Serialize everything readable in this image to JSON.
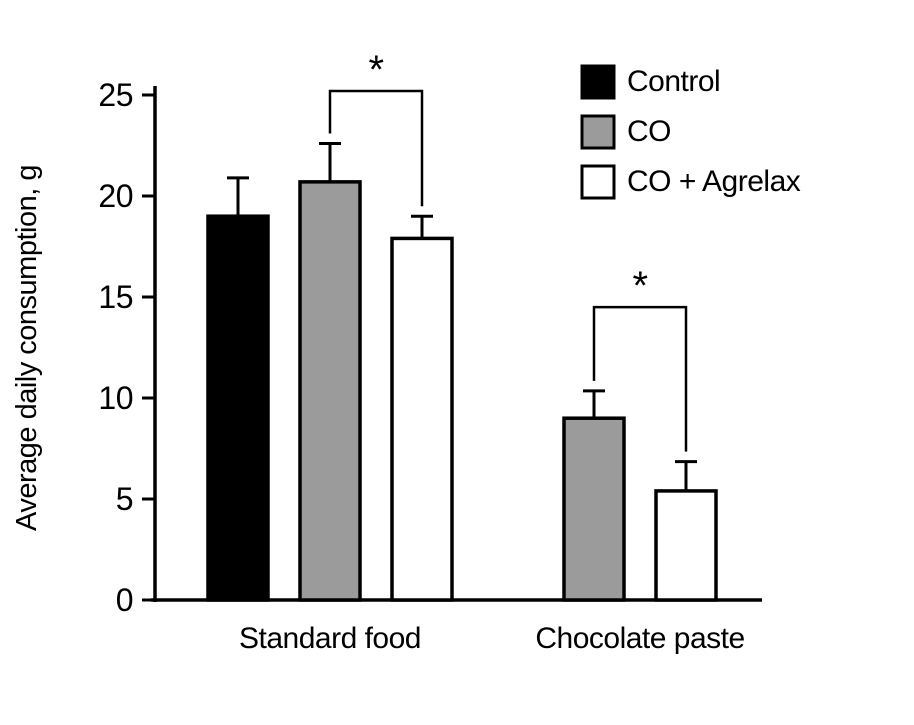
{
  "chart_data": {
    "type": "bar",
    "title": "",
    "ylabel": "Average daily consumption, g",
    "xlabel": "",
    "ylim": [
      0,
      25
    ],
    "yticks": [
      0,
      5,
      10,
      15,
      20,
      25
    ],
    "categories": [
      "Standard food",
      "Chocolate paste"
    ],
    "series": [
      {
        "name": "Control",
        "color": "#000000",
        "values": [
          19.0,
          null
        ],
        "errors": [
          1.9,
          null
        ]
      },
      {
        "name": "CO",
        "color": "#9b9b9b",
        "values": [
          20.7,
          9.0
        ],
        "errors": [
          1.9,
          1.35
        ]
      },
      {
        "name": "CO + Agrelax",
        "color": "#ffffff",
        "values": [
          17.9,
          5.4
        ],
        "errors": [
          1.1,
          1.45
        ]
      }
    ],
    "significance_brackets": [
      {
        "category_index": 0,
        "between_series": [
          1,
          2
        ],
        "label": "*",
        "height": 25.2
      },
      {
        "category_index": 1,
        "between_series": [
          1,
          2
        ],
        "label": "*",
        "height": 14.5
      }
    ],
    "legend": {
      "position": "top-right",
      "entries": [
        "Control",
        "CO",
        "CO + Agrelax"
      ]
    },
    "grid": false,
    "background": "#ffffff",
    "bar_border_color": "#000000"
  }
}
